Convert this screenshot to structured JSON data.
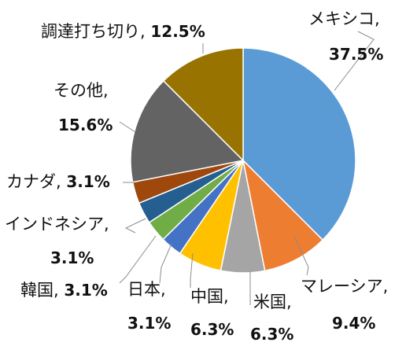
{
  "chart_data": {
    "type": "pie",
    "title": "",
    "start_angle_deg": 0,
    "direction": "clockwise",
    "slices": [
      {
        "name": "メキシコ",
        "value": 37.5,
        "label": "37.5%",
        "color": "#5B9BD5"
      },
      {
        "name": "マレーシア",
        "value": 9.4,
        "label": "9.4%",
        "color": "#ED7D31"
      },
      {
        "name": "米国",
        "value": 6.3,
        "label": "6.3%",
        "color": "#A5A5A5"
      },
      {
        "name": "中国",
        "value": 6.3,
        "label": "6.3%",
        "color": "#FFC000"
      },
      {
        "name": "日本",
        "value": 3.1,
        "label": "3.1%",
        "color": "#4472C4"
      },
      {
        "name": "韓国",
        "value": 3.1,
        "label": "3.1%",
        "color": "#70AD47"
      },
      {
        "name": "インドネシア",
        "value": 3.1,
        "label": "3.1%",
        "color": "#255E91"
      },
      {
        "name": "カナダ",
        "value": 3.1,
        "label": "3.1%",
        "color": "#9E480E"
      },
      {
        "name": "その他",
        "value": 15.6,
        "label": "15.6%",
        "color": "#636363"
      },
      {
        "name": "調達打ち切り",
        "value": 12.5,
        "label": "12.5%",
        "color": "#997300"
      }
    ]
  }
}
